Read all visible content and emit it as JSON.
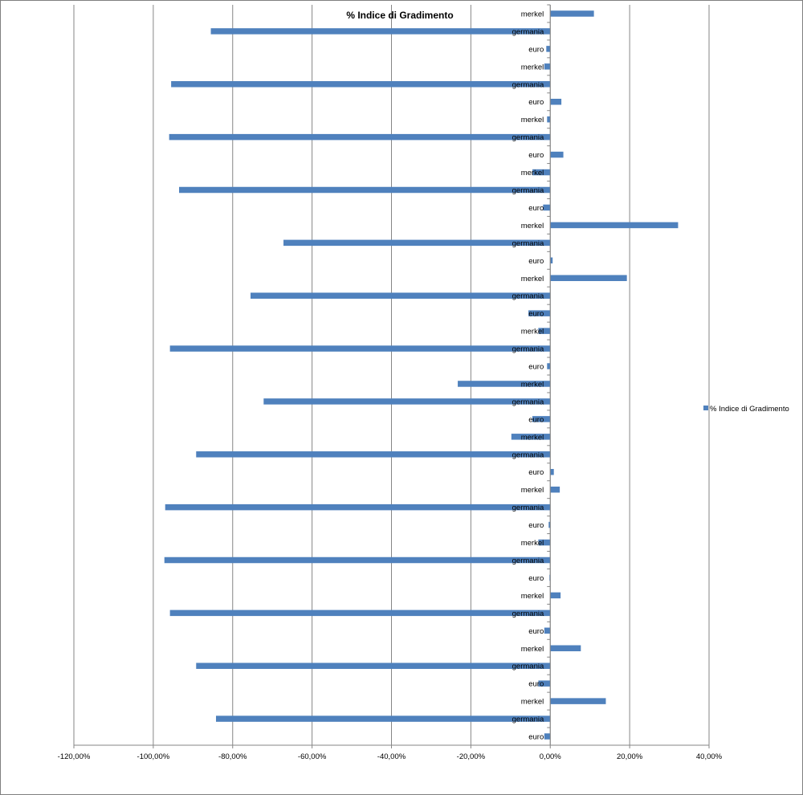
{
  "chart_data": {
    "type": "bar",
    "orientation": "horizontal",
    "title": "% Indice di Gradimento",
    "xlabel": "",
    "ylabel": "",
    "xlim": [
      -1.2,
      0.4
    ],
    "x_ticks": [
      -1.2,
      -1.0,
      -0.8,
      -0.6,
      -0.4,
      -0.2,
      0.0,
      0.2,
      0.4
    ],
    "x_tick_labels": [
      "-120,00%",
      "-100,00%",
      "-80,00%",
      "-60,00%",
      "-40,00%",
      "-20,00%",
      "0,00%",
      "20,00%",
      "40,00%"
    ],
    "grid": "vertical",
    "legend_position": "right",
    "bar_color": "#4f81bd",
    "categories": [
      "merkel",
      "germania",
      "euro",
      "merkel",
      "germania",
      "euro",
      "merkel",
      "germania",
      "euro",
      "merkel",
      "germania",
      "euro",
      "merkel",
      "germania",
      "euro",
      "merkel",
      "germania",
      "euro",
      "merkel",
      "germania",
      "euro",
      "merkel",
      "germania",
      "euro",
      "merkel",
      "germania",
      "euro",
      "merkel",
      "germania",
      "euro",
      "merkel",
      "germania",
      "euro",
      "merkel",
      "germania",
      "euro",
      "merkel",
      "germania",
      "euro",
      "merkel",
      "germania",
      "euro"
    ],
    "series": [
      {
        "name": "% Indice di Gradimento",
        "values": [
          0.11,
          -0.855,
          -0.01,
          -0.015,
          -0.955,
          0.028,
          -0.008,
          -0.96,
          0.033,
          -0.045,
          -0.935,
          -0.018,
          0.322,
          -0.672,
          0.006,
          0.193,
          -0.755,
          -0.055,
          -0.03,
          -0.958,
          -0.008,
          -0.233,
          -0.722,
          -0.045,
          -0.098,
          -0.892,
          0.009,
          0.024,
          -0.97,
          -0.004,
          -0.03,
          -0.972,
          -0.002,
          0.026,
          -0.958,
          -0.015,
          0.077,
          -0.892,
          -0.03,
          0.14,
          -0.842,
          -0.015
        ]
      }
    ]
  }
}
